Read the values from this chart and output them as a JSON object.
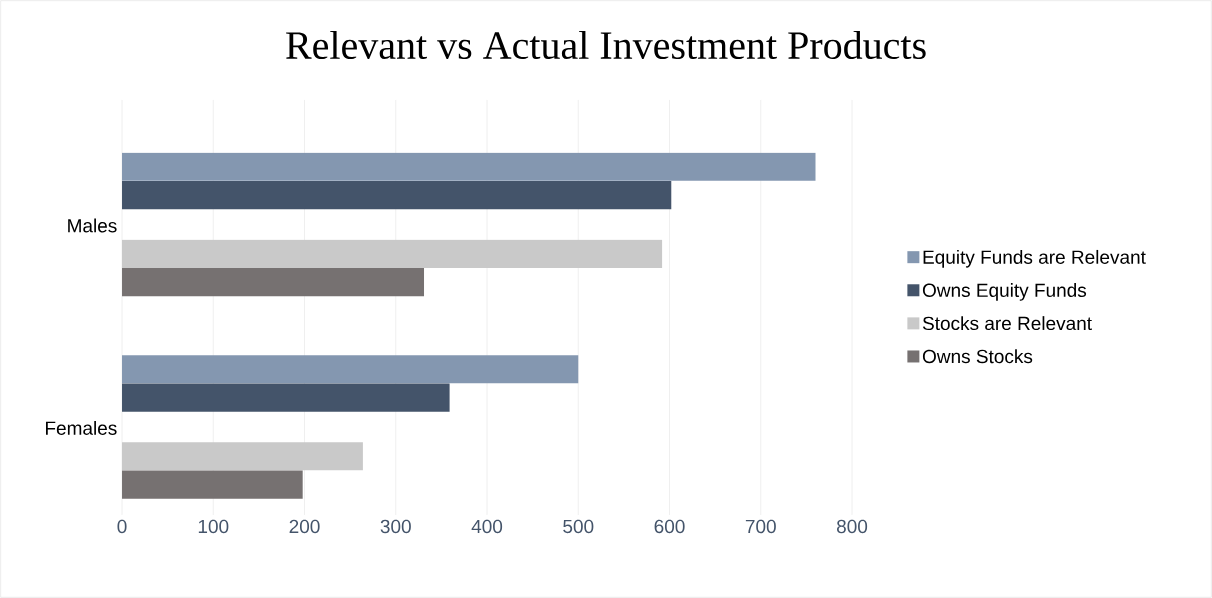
{
  "chart_data": {
    "type": "bar",
    "orientation": "horizontal",
    "title": "Relevant vs Actual Investment Products",
    "categories": [
      "Males",
      "Females"
    ],
    "series": [
      {
        "name": "Equity Funds are Relevant",
        "color": "#8497b0",
        "values": [
          760,
          500
        ]
      },
      {
        "name": "Owns Equity Funds",
        "color": "#44546a",
        "values": [
          602,
          359
        ]
      },
      {
        "name": "Stocks are Relevant",
        "color": "#c9c9c9",
        "values": [
          592,
          264
        ]
      },
      {
        "name": "Owns Stocks",
        "color": "#767171",
        "values": [
          331,
          198
        ]
      }
    ],
    "xlim": [
      0,
      800
    ],
    "xticks": [
      0,
      100,
      200,
      300,
      400,
      500,
      600,
      700,
      800
    ],
    "grid": "x",
    "legend": "right"
  }
}
